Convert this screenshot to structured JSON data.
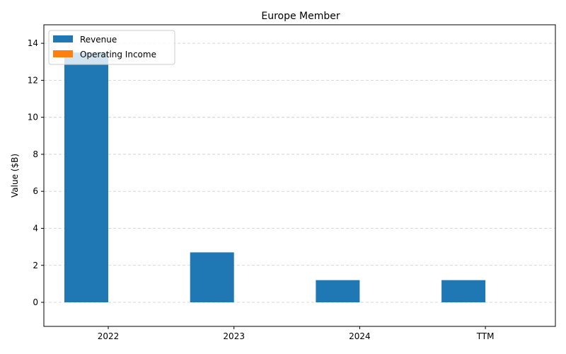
{
  "chart_data": {
    "type": "bar",
    "title": "Europe Member",
    "xlabel": "",
    "ylabel": "Value ($B)",
    "categories": [
      "2022",
      "2023",
      "2024",
      "TTM"
    ],
    "series": [
      {
        "name": "Revenue",
        "color": "#1f77b4",
        "values": [
          13.5,
          2.7,
          1.2,
          1.2
        ]
      },
      {
        "name": "Operating Income",
        "color": "#ff7f0e",
        "values": [
          0,
          0,
          0,
          0
        ]
      }
    ],
    "ylim": [
      -1.3,
      15.0
    ],
    "yticks": [
      0,
      2,
      4,
      6,
      8,
      10,
      12,
      14
    ],
    "grid": true,
    "legend_position": "top-left"
  }
}
